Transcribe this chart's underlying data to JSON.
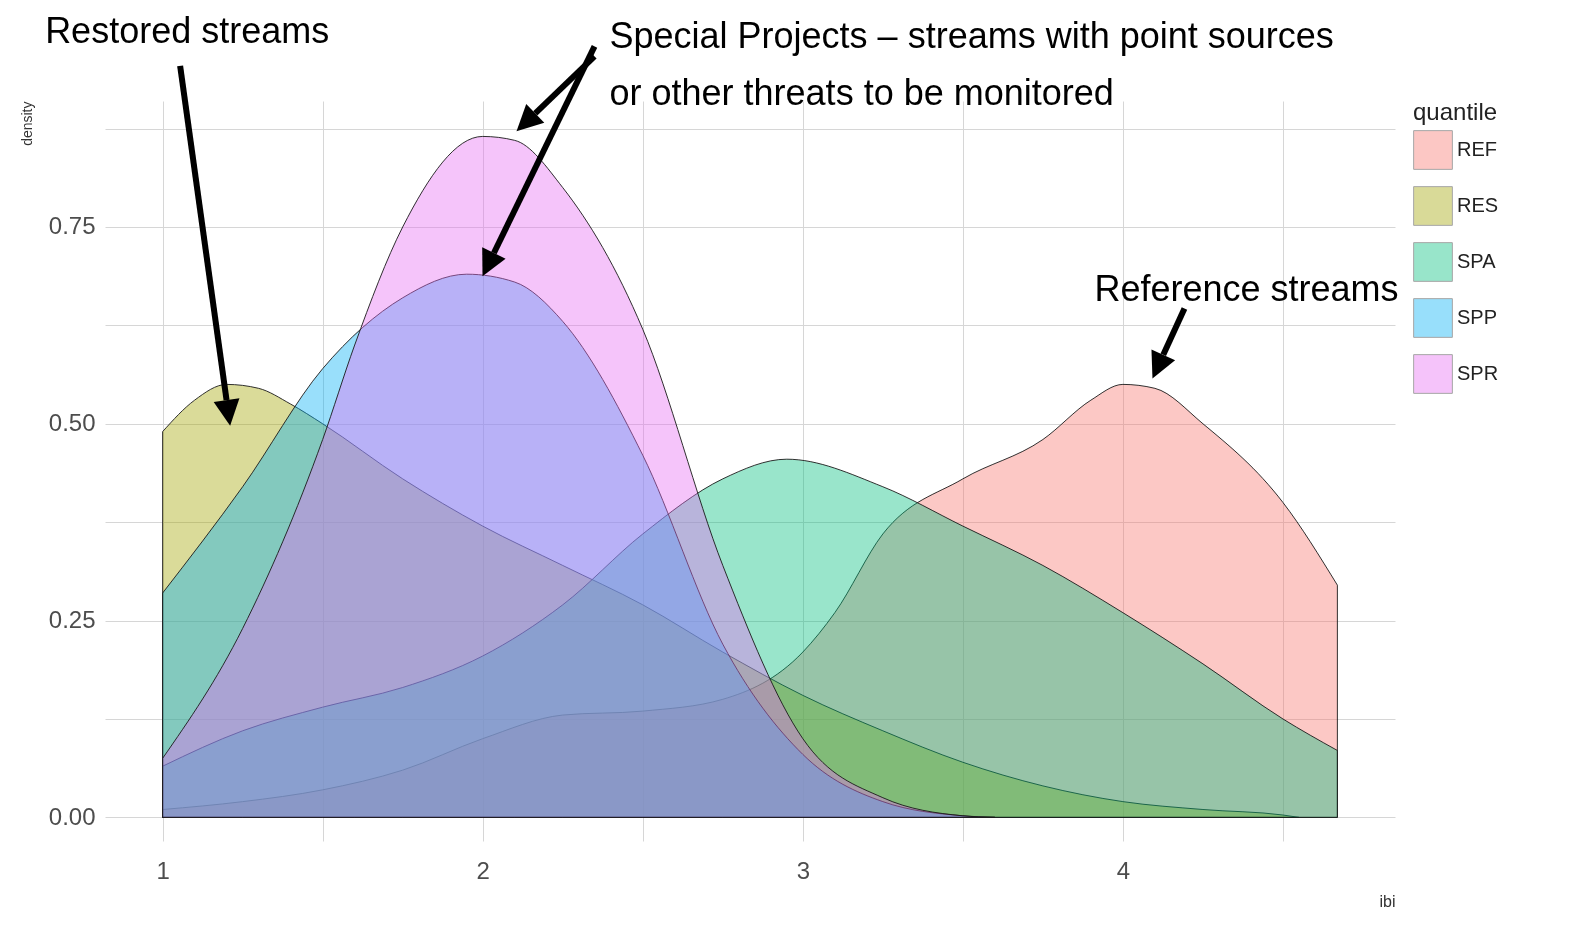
{
  "chart_data": {
    "type": "area",
    "xlabel": "ibi",
    "ylabel": "density",
    "legend_title": "quantile",
    "legend": "right",
    "grid": true,
    "xlim": [
      0.82,
      4.85
    ],
    "xticks": [
      1,
      {
        "value": 1.5,
        "label": null
      },
      2,
      {
        "value": 2.5,
        "label": null
      },
      3,
      {
        "value": 3.5,
        "label": null
      },
      4,
      {
        "value": 4.5,
        "label": null
      }
    ],
    "ylim": [
      -0.03,
      0.91
    ],
    "yticks": [
      {
        "value": 0,
        "label": "0.00"
      },
      {
        "value": 0.125,
        "label": null
      },
      {
        "value": 0.25,
        "label": "0.25"
      },
      {
        "value": 0.375,
        "label": null
      },
      {
        "value": 0.5,
        "label": "0.50"
      },
      {
        "value": 0.625,
        "label": null
      },
      {
        "value": 0.75,
        "label": "0.75"
      },
      {
        "value": 0.875,
        "label": null
      }
    ],
    "series": [
      {
        "name": "REF",
        "color": "#f8766d",
        "x": [
          1,
          1.25,
          1.5,
          1.75,
          2,
          2.25,
          2.5,
          2.75,
          3,
          3.1,
          3.25,
          3.5,
          3.75,
          3.9,
          4,
          4.1,
          4.25,
          4.5,
          4.67
        ],
        "values": [
          0.01,
          0.02,
          0.035,
          0.06,
          0.1,
          0.13,
          0.135,
          0.15,
          0.21,
          0.26,
          0.36,
          0.43,
          0.48,
          0.53,
          0.55,
          0.545,
          0.5,
          0.4,
          0.295
        ]
      },
      {
        "name": "RES",
        "color": "#a3a500",
        "x": [
          1,
          1.1,
          1.2,
          1.3,
          1.4,
          1.5,
          1.75,
          2,
          2.25,
          2.5,
          2.75,
          3,
          3.25,
          3.5,
          3.75,
          4,
          4.25,
          4.5,
          4.55
        ],
        "values": [
          0.49,
          0.53,
          0.55,
          0.545,
          0.525,
          0.5,
          0.43,
          0.37,
          0.32,
          0.27,
          0.21,
          0.155,
          0.11,
          0.07,
          0.04,
          0.02,
          0.01,
          0.003,
          0
        ]
      },
      {
        "name": "SPA",
        "color": "#00bf7d",
        "x": [
          1,
          1.25,
          1.5,
          1.75,
          2,
          2.25,
          2.5,
          2.75,
          2.95,
          3.25,
          3.5,
          3.75,
          4,
          4.25,
          4.5,
          4.67
        ],
        "values": [
          0.065,
          0.11,
          0.14,
          0.165,
          0.205,
          0.27,
          0.36,
          0.43,
          0.455,
          0.42,
          0.37,
          0.32,
          0.26,
          0.195,
          0.125,
          0.085
        ]
      },
      {
        "name": "SPP",
        "color": "#00b0f6",
        "x": [
          1,
          1.25,
          1.5,
          1.75,
          1.95,
          2.1,
          2.25,
          2.5,
          2.75,
          3,
          3.25,
          3.5,
          3.6
        ],
        "values": [
          0.285,
          0.42,
          0.57,
          0.66,
          0.69,
          0.68,
          0.63,
          0.46,
          0.22,
          0.08,
          0.02,
          0.002,
          0
        ]
      },
      {
        "name": "SPR",
        "color": "#e76bf3",
        "x": [
          1,
          1.25,
          1.5,
          1.6,
          1.75,
          2,
          2.1,
          2.25,
          2.5,
          2.75,
          3,
          3.25,
          3.5,
          3.6
        ],
        "values": [
          0.075,
          0.24,
          0.48,
          0.6,
          0.75,
          0.865,
          0.86,
          0.8,
          0.62,
          0.32,
          0.1,
          0.025,
          0.002,
          0
        ]
      }
    ],
    "annotations": [
      "Restored streams",
      "Special Projects – streams with point sources or other threats to be monitored",
      "Reference streams"
    ]
  }
}
